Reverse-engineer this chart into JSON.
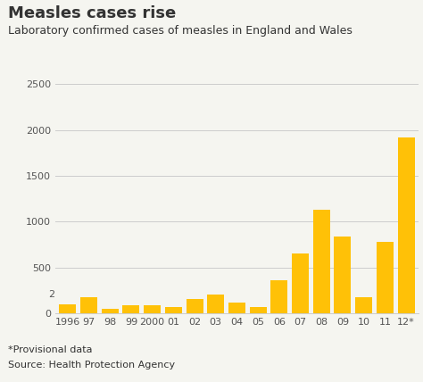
{
  "title": "Measles cases rise",
  "subtitle": "Laboratory confirmed cases of measles in England and Wales",
  "years": [
    "1996",
    "97",
    "98",
    "99",
    "2000",
    "01",
    "02",
    "03",
    "04",
    "05",
    "06",
    "07",
    "08",
    "09",
    "10",
    "11",
    "12*"
  ],
  "values": [
    100,
    170,
    50,
    90,
    90,
    70,
    160,
    200,
    120,
    70,
    360,
    650,
    1130,
    840,
    170,
    775,
    1920
  ],
  "bar_color": "#FFC107",
  "background_color": "#f5f5f0",
  "ylim": [
    0,
    2500
  ],
  "yticks": [
    0,
    500,
    1000,
    1500,
    2000,
    2500
  ],
  "yticklabels": [
    "0",
    "500",
    "1000",
    "1500",
    "2000",
    "2500"
  ],
  "footnote1": "*Provisional data",
  "footnote2": "Source: Health Protection Agency",
  "title_fontsize": 13,
  "subtitle_fontsize": 9,
  "tick_fontsize": 8,
  "footnote_fontsize": 8,
  "grid_color": "#cccccc",
  "axis_label_color": "#555555",
  "text_color": "#333333"
}
